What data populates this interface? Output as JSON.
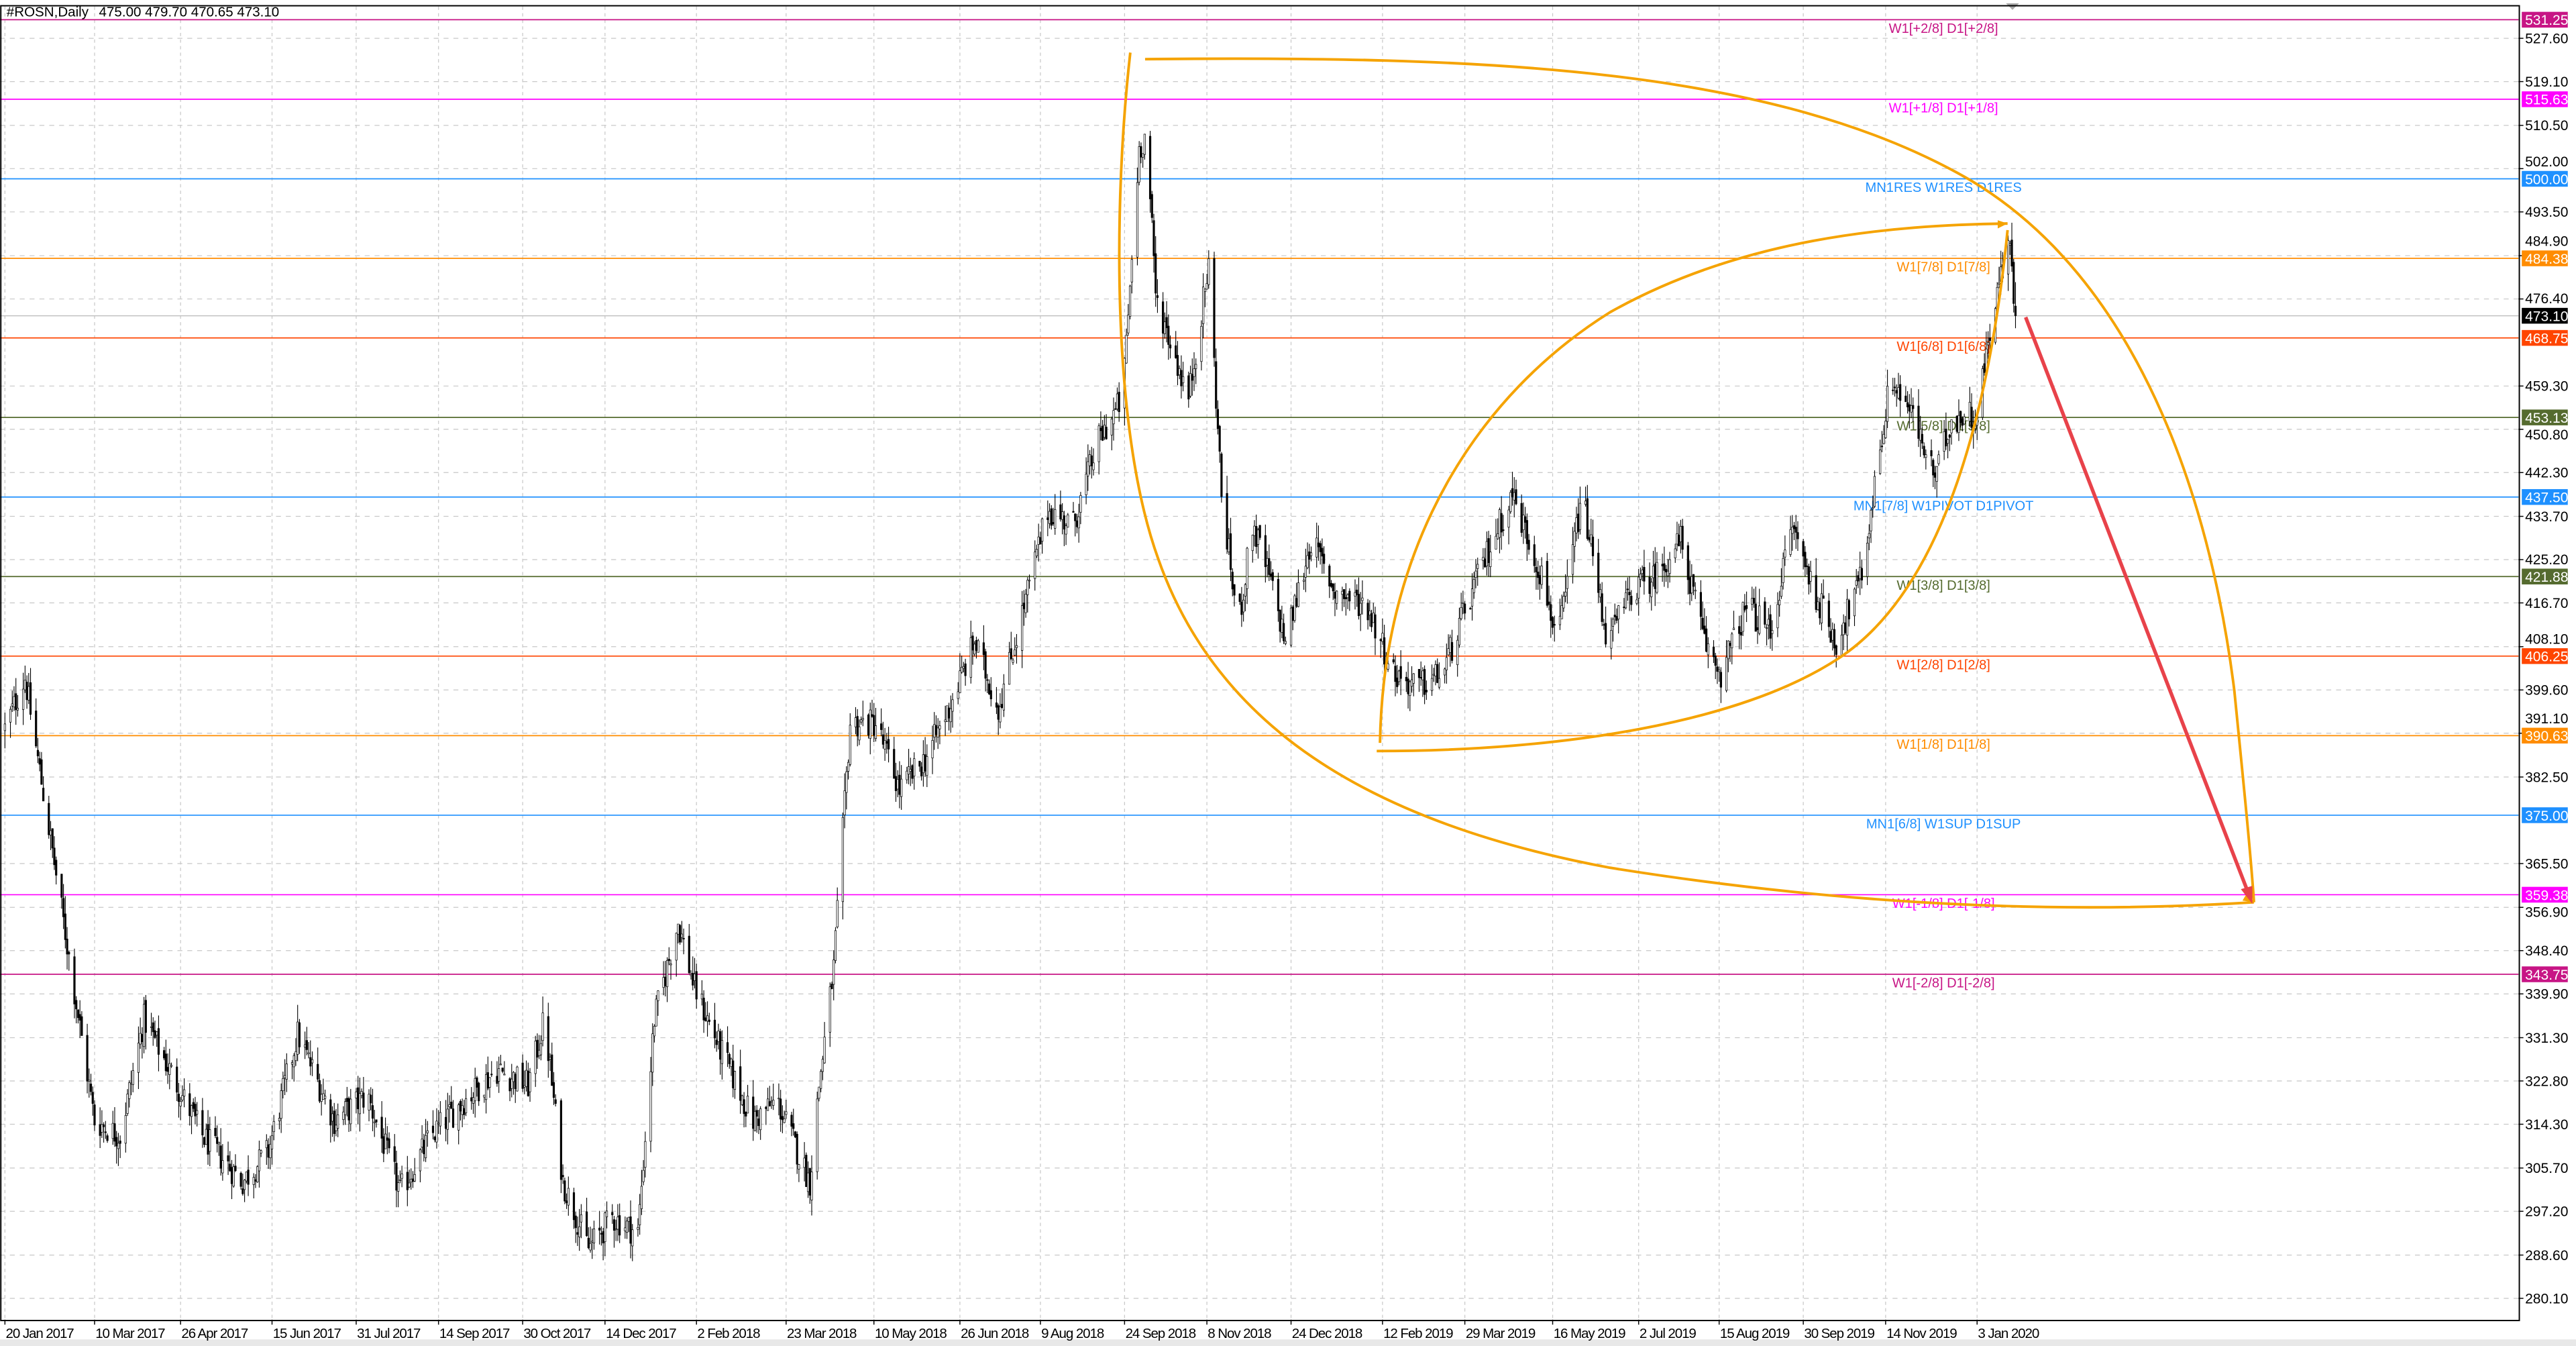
{
  "header": {
    "title": "#ROSN,Daily",
    "ohlc": "475.00 479.70 470.65 473.10"
  },
  "chart_data": {
    "type": "candlestick",
    "symbol": "#ROSN",
    "timeframe": "Daily",
    "last_bar": {
      "open": 475.0,
      "high": 479.7,
      "low": 470.65,
      "close": 473.1
    },
    "current_price": {
      "value": 473.1,
      "label": "473.10",
      "color": "#000000"
    },
    "ylim": [
      280.1,
      531.25
    ],
    "grid": true,
    "price_ticks": [
      "527.60",
      "519.10",
      "510.50",
      "502.00",
      "493.50",
      "484.90",
      "476.40",
      "459.30",
      "450.80",
      "442.30",
      "433.70",
      "425.20",
      "416.70",
      "408.10",
      "399.60",
      "391.10",
      "382.50",
      "365.50",
      "356.90",
      "348.40",
      "339.90",
      "331.30",
      "322.80",
      "314.30",
      "305.70",
      "297.20",
      "288.60",
      "280.10"
    ],
    "date_ticks": [
      {
        "date": "2017-01-20",
        "label": "20 Jan 2017"
      },
      {
        "date": "2017-03-10",
        "label": "10 Mar 2017"
      },
      {
        "date": "2017-04-26",
        "label": "26 Apr 2017"
      },
      {
        "date": "2017-06-15",
        "label": "15 Jun 2017"
      },
      {
        "date": "2017-07-31",
        "label": "31 Jul 2017"
      },
      {
        "date": "2017-09-14",
        "label": "14 Sep 2017"
      },
      {
        "date": "2017-10-30",
        "label": "30 Oct 2017"
      },
      {
        "date": "2017-12-14",
        "label": "14 Dec 2017"
      },
      {
        "date": "2018-02-02",
        "label": "2 Feb 2018"
      },
      {
        "date": "2018-03-23",
        "label": "23 Mar 2018"
      },
      {
        "date": "2018-05-10",
        "label": "10 May 2018"
      },
      {
        "date": "2018-06-26",
        "label": "26 Jun 2018"
      },
      {
        "date": "2018-08-09",
        "label": "9 Aug 2018"
      },
      {
        "date": "2018-09-24",
        "label": "24 Sep 2018"
      },
      {
        "date": "2018-11-08",
        "label": "8 Nov 2018"
      },
      {
        "date": "2018-12-24",
        "label": "24 Dec 2018"
      },
      {
        "date": "2019-02-12",
        "label": "12 Feb 2019"
      },
      {
        "date": "2019-03-29",
        "label": "29 Mar 2019"
      },
      {
        "date": "2019-05-16",
        "label": "16 May 2019"
      },
      {
        "date": "2019-07-02",
        "label": "2 Jul 2019"
      },
      {
        "date": "2019-08-15",
        "label": "15 Aug 2019"
      },
      {
        "date": "2019-09-30",
        "label": "30 Sep 2019"
      },
      {
        "date": "2019-11-14",
        "label": "14 Nov 2019"
      },
      {
        "date": "2020-01-03",
        "label": "3 Jan 2020"
      }
    ],
    "levels": [
      {
        "price": 531.25,
        "value_label": "531.25",
        "label": "W1[+2/8] D1[+2/8]",
        "color": "#c71585"
      },
      {
        "price": 515.63,
        "value_label": "515.63",
        "label": "W1[+1/8] D1[+1/8]",
        "color": "#ff00ff"
      },
      {
        "price": 500.0,
        "value_label": "500.00",
        "label": "MN1RES W1RES D1RES",
        "color": "#1e90ff"
      },
      {
        "price": 484.38,
        "value_label": "484.38",
        "label": "W1[7/8] D1[7/8]",
        "color": "#ff8c00"
      },
      {
        "price": 468.75,
        "value_label": "468.75",
        "label": "W1[6/8] D1[6/8]",
        "color": "#ff4500"
      },
      {
        "price": 453.13,
        "value_label": "453.13",
        "label": "W1[5/8] D1[5/8]",
        "color": "#556b2f"
      },
      {
        "price": 437.5,
        "value_label": "437.50",
        "label": "MN1[7/8] W1PIVOT D1PIVOT",
        "color": "#1e90ff"
      },
      {
        "price": 421.88,
        "value_label": "421.88",
        "label": "W1[3/8] D1[3/8]",
        "color": "#556b2f"
      },
      {
        "price": 406.25,
        "value_label": "406.25",
        "label": "W1[2/8] D1[2/8]",
        "color": "#ff4500"
      },
      {
        "price": 390.63,
        "value_label": "390.63",
        "label": "W1[1/8] D1[1/8]",
        "color": "#ff8c00"
      },
      {
        "price": 375.0,
        "value_label": "375.00",
        "label": "MN1[6/8] W1SUP D1SUP",
        "color": "#1e90ff"
      },
      {
        "price": 359.38,
        "value_label": "359.38",
        "label": "W1[-1/8] D1[-1/8]",
        "color": "#ff00ff"
      },
      {
        "price": 343.75,
        "value_label": "343.75",
        "label": "W1[-2/8] D1[-2/8]",
        "color": "#c71585"
      }
    ],
    "close_path": [
      [
        "2017-01-20",
        392
      ],
      [
        "2017-01-31",
        402
      ],
      [
        "2017-02-11",
        377
      ],
      [
        "2017-02-25",
        345
      ],
      [
        "2017-03-10",
        315
      ],
      [
        "2017-03-24",
        312
      ],
      [
        "2017-04-06",
        335
      ],
      [
        "2017-04-20",
        325
      ],
      [
        "2017-05-08",
        312
      ],
      [
        "2017-05-30",
        303
      ],
      [
        "2017-06-13",
        309
      ],
      [
        "2017-06-29",
        332
      ],
      [
        "2017-07-19",
        315
      ],
      [
        "2017-08-06",
        320
      ],
      [
        "2017-08-24",
        301
      ],
      [
        "2017-09-10",
        312
      ],
      [
        "2017-09-28",
        319
      ],
      [
        "2017-10-16",
        325
      ],
      [
        "2017-11-02",
        322
      ],
      [
        "2017-11-11",
        335
      ],
      [
        "2017-11-21",
        303
      ],
      [
        "2017-12-05",
        290
      ],
      [
        "2017-12-18",
        296
      ],
      [
        "2018-01-01",
        293
      ],
      [
        "2018-01-10",
        335
      ],
      [
        "2018-01-23",
        354
      ],
      [
        "2018-02-01",
        341
      ],
      [
        "2018-02-15",
        329
      ],
      [
        "2018-03-05",
        315
      ],
      [
        "2018-03-18",
        319
      ],
      [
        "2018-04-05",
        303
      ],
      [
        "2018-04-10",
        322
      ],
      [
        "2018-04-18",
        345
      ],
      [
        "2018-04-27",
        393
      ],
      [
        "2018-05-11",
        393
      ],
      [
        "2018-05-24",
        380
      ],
      [
        "2018-06-07",
        386
      ],
      [
        "2018-06-20",
        396
      ],
      [
        "2018-07-04",
        409
      ],
      [
        "2018-07-17",
        396
      ],
      [
        "2018-07-31",
        416
      ],
      [
        "2018-08-13",
        435
      ],
      [
        "2018-08-27",
        432
      ],
      [
        "2018-09-09",
        448
      ],
      [
        "2018-09-23",
        457
      ],
      [
        "2018-10-02",
        506
      ],
      [
        "2018-10-06",
        509
      ],
      [
        "2018-10-11",
        477
      ],
      [
        "2018-10-20",
        467
      ],
      [
        "2018-10-29",
        457
      ],
      [
        "2018-11-09",
        483
      ],
      [
        "2018-11-16",
        438
      ],
      [
        "2018-11-25",
        412
      ],
      [
        "2018-12-03",
        432
      ],
      [
        "2018-12-12",
        422
      ],
      [
        "2018-12-21",
        409
      ],
      [
        "2019-01-04",
        429
      ],
      [
        "2019-01-17",
        419
      ],
      [
        "2019-02-04",
        416
      ],
      [
        "2019-02-18",
        403
      ],
      [
        "2019-03-03",
        400
      ],
      [
        "2019-03-17",
        403
      ],
      [
        "2019-03-30",
        416
      ],
      [
        "2019-04-13",
        429
      ],
      [
        "2019-04-24",
        438
      ],
      [
        "2019-05-10",
        422
      ],
      [
        "2019-05-19",
        409
      ],
      [
        "2019-06-01",
        438
      ],
      [
        "2019-06-15",
        409
      ],
      [
        "2019-06-28",
        419
      ],
      [
        "2019-07-11",
        422
      ],
      [
        "2019-07-25",
        429
      ],
      [
        "2019-08-07",
        409
      ],
      [
        "2019-08-16",
        403
      ],
      [
        "2019-08-30",
        416
      ],
      [
        "2019-09-12",
        411
      ],
      [
        "2019-09-24",
        432
      ],
      [
        "2019-10-05",
        420
      ],
      [
        "2019-10-18",
        409
      ],
      [
        "2019-11-01",
        422
      ],
      [
        "2019-11-10",
        445
      ],
      [
        "2019-11-17",
        461
      ],
      [
        "2019-11-28",
        454
      ],
      [
        "2019-12-11",
        441
      ],
      [
        "2019-12-20",
        453
      ],
      [
        "2020-01-03",
        454
      ],
      [
        "2020-01-13",
        477
      ],
      [
        "2020-01-21",
        487
      ],
      [
        "2020-01-24",
        473.1
      ]
    ],
    "drawing_colors": {
      "curves": "#f5a300",
      "arrow": "#e8424a"
    }
  }
}
